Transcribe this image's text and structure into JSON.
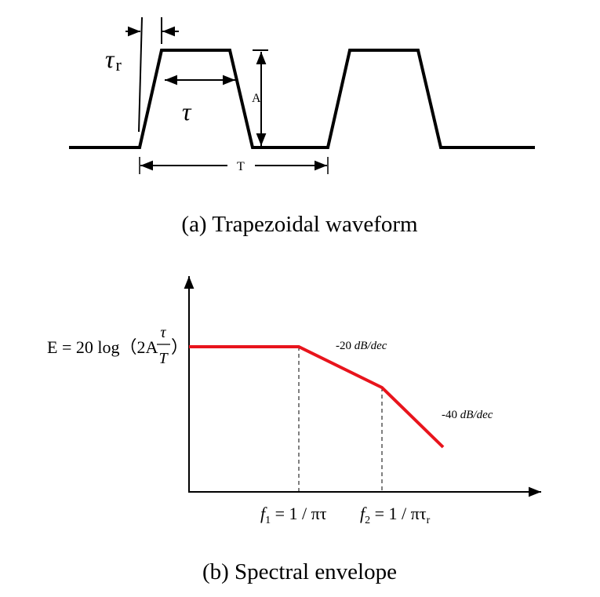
{
  "waveform": {
    "rise_time": {
      "symbol": "τ",
      "subscript": "r"
    },
    "pulse_width": "τ",
    "amplitude": "A",
    "period": "T",
    "caption": "(a) Trapezoidal waveform"
  },
  "envelope": {
    "level": {
      "prefix": "E = 20 log（2A",
      "numerator": "τ",
      "denominator": "T",
      "suffix": "）"
    },
    "slope1": {
      "value": "-20",
      "unit": "dB/dec"
    },
    "slope2": {
      "value": "-40",
      "unit": "dB/dec"
    },
    "f1": {
      "symbol": "f",
      "subscript": "1",
      "expr": " = 1 / πτ"
    },
    "f2": {
      "symbol": "f",
      "subscript": "2",
      "expr": " = 1 / πτ",
      "expr_subscript": "r"
    },
    "caption": "(b) Spectral envelope"
  }
}
